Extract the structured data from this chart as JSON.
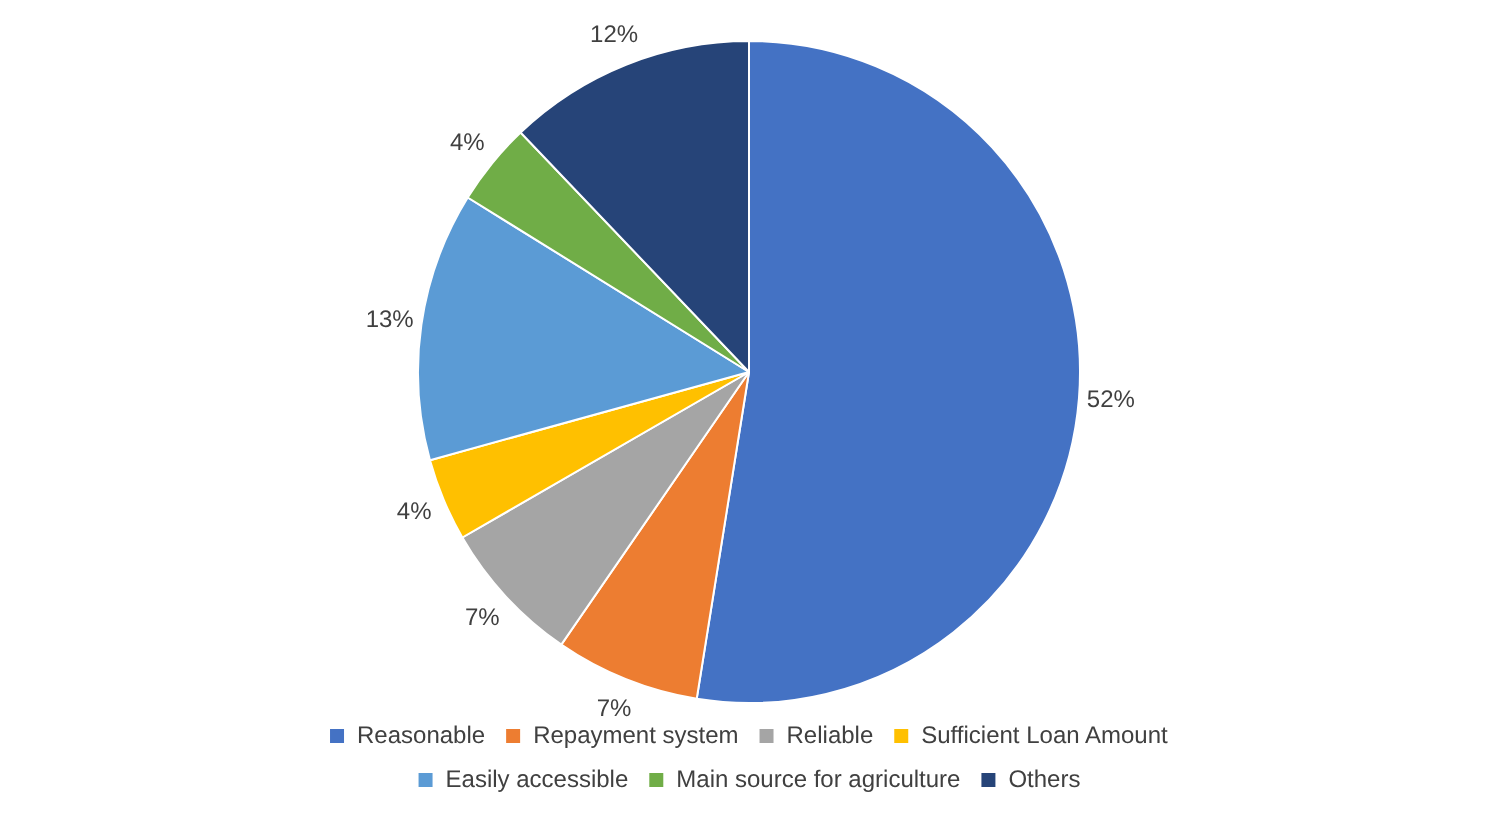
{
  "chart_data": {
    "type": "pie",
    "categories": [
      "Reasonable",
      "Repayment system",
      "Reliable",
      "Sufficient Loan Amount",
      "Easily accessible",
      "Main source for agriculture",
      "Others"
    ],
    "values": [
      52,
      7,
      7,
      4,
      13,
      4,
      12
    ],
    "value_labels": [
      "52%",
      "7%",
      "7%",
      "4%",
      "13%",
      "4%",
      "12%"
    ],
    "colors": [
      "#4472c4",
      "#ed7d31",
      "#a5a5a5",
      "#ffc000",
      "#5b9bd5",
      "#70ad47",
      "#264478"
    ],
    "legend": "bottom"
  }
}
